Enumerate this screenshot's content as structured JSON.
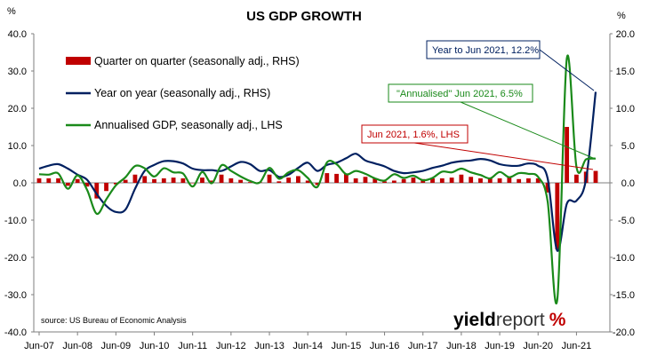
{
  "chart_data": {
    "type": "bar",
    "title": "US GDP GROWTH",
    "left_axis_unit": "%",
    "right_axis_unit": "%",
    "ylim_left": [
      -40,
      40
    ],
    "ylim_right": [
      -20,
      20
    ],
    "left_ticks": [
      "40.0",
      "30.0",
      "20.0",
      "10.0",
      "0.0",
      "-10.0",
      "-20.0",
      "-30.0",
      "-40.0"
    ],
    "right_ticks": [
      "20.0",
      "15.0",
      "10.0",
      "5.0",
      "0.0",
      "-5.0",
      "-10.0",
      "-15.0",
      "-20.0"
    ],
    "x_start": "2007Q2",
    "x_end": "2021Q2",
    "x_tick_labels": [
      "Jun-07",
      "Jun-08",
      "Jun-09",
      "Jun-10",
      "Jun-11",
      "Jun-12",
      "Jun-13",
      "Jun-14",
      "Jun-15",
      "Jun-16",
      "Jun-17",
      "Jun-18",
      "Jun-19",
      "Jun-20",
      "Jun-21"
    ],
    "grid": false,
    "legend_position": "top-left",
    "series": [
      {
        "name": "Quarter on quarter (seasonally adj., RHS)",
        "type": "bar",
        "axis": "right",
        "color": "#c00000",
        "values": [
          0.6,
          0.6,
          0.6,
          -0.4,
          0.5,
          -0.5,
          -2.1,
          -1.1,
          -0.2,
          0.4,
          1.1,
          0.9,
          0.5,
          0.6,
          0.7,
          0.6,
          0.0,
          0.7,
          0.3,
          1.1,
          0.6,
          0.4,
          0.1,
          0.1,
          1.1,
          0.2,
          0.7,
          0.9,
          0.3,
          -0.3,
          1.3,
          1.2,
          1.2,
          0.6,
          0.8,
          0.6,
          0.2,
          0.3,
          0.5,
          0.7,
          0.5,
          0.6,
          0.6,
          0.7,
          1.1,
          0.8,
          0.6,
          0.6,
          0.6,
          0.8,
          0.5,
          0.6,
          0.6,
          -1.3,
          -8.9,
          7.5,
          1.1,
          1.5,
          1.6
        ]
      },
      {
        "name": "Year on year (seasonally adj., RHS)",
        "type": "line",
        "axis": "right",
        "color": "#002060",
        "values": [
          1.9,
          2.3,
          2.5,
          1.9,
          1.1,
          0.4,
          -1.5,
          -3.1,
          -3.9,
          -3.6,
          -0.8,
          1.6,
          2.4,
          2.9,
          2.9,
          2.6,
          1.9,
          1.7,
          1.7,
          1.6,
          2.2,
          2.8,
          2.5,
          1.6,
          1.7,
          0.8,
          1.1,
          2.0,
          2.7,
          1.6,
          2.4,
          2.7,
          3.3,
          3.9,
          3.0,
          2.6,
          2.2,
          1.6,
          1.3,
          1.4,
          1.6,
          2.0,
          2.3,
          2.7,
          2.9,
          3.0,
          3.2,
          3.0,
          2.5,
          2.3,
          2.3,
          2.6,
          2.3,
          0.6,
          -9.1,
          -2.8,
          -2.4,
          0.5,
          12.2
        ]
      },
      {
        "name": "Annualised GDP, seasonally adj., LHS",
        "type": "line",
        "axis": "left",
        "color": "#1a8a1a",
        "values": [
          2.3,
          2.2,
          2.5,
          -1.6,
          2.0,
          -1.9,
          -8.3,
          -4.4,
          -0.7,
          1.5,
          4.5,
          3.9,
          1.7,
          3.9,
          2.8,
          2.5,
          -1.0,
          2.9,
          -0.1,
          4.7,
          3.2,
          1.7,
          0.5,
          0.1,
          4.0,
          1.1,
          2.8,
          3.4,
          1.3,
          -1.1,
          5.5,
          5.0,
          2.3,
          3.2,
          2.4,
          1.2,
          0.6,
          2.3,
          1.3,
          1.9,
          0.7,
          1.3,
          3.0,
          2.8,
          3.8,
          2.8,
          2.1,
          1.2,
          2.9,
          1.5,
          2.6,
          2.4,
          1.6,
          -5.0,
          -31.4,
          33.4,
          4.3,
          6.3,
          6.5
        ]
      }
    ],
    "annotations": [
      {
        "text": "Year to Jun 2021, 12.2%",
        "color": "#002060"
      },
      {
        "text": "\"Annualised\" Jun 2021, 6.5%",
        "color": "#1a8a1a"
      },
      {
        "text": "Jun 2021, 1.6%, LHS",
        "color": "#c00000"
      }
    ],
    "source": "source: US Bureau of Economic Analysis",
    "brand": "yieldreport %"
  }
}
